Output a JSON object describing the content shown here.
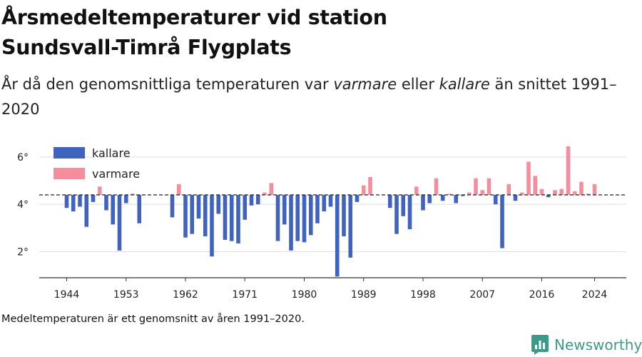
{
  "title_line1": "Årsmedeltemperaturer vid station",
  "title_line2": "Sundsvall-Timrå Flygplats",
  "subtitle": {
    "part1": "År då den genomsnittliga temperaturen var ",
    "warmer": "varmare",
    "part2": " eller ",
    "colder": "kallare",
    "part3": " än snittet 1991–2020"
  },
  "note": "Medeltemperaturen är ett genomsnitt av åren 1991–2020.",
  "brand": "Newsworthy",
  "colors": {
    "colder": "#3f63bf",
    "warmer": "#f58d9c",
    "grid": "#dddddd",
    "axis": "#333333",
    "reference": "#333333"
  },
  "chart_data": {
    "type": "bar",
    "baseline": 4.4,
    "ylim": [
      0.9,
      6.9
    ],
    "yticks": [
      2,
      4,
      6
    ],
    "ytick_labels": [
      "2°",
      "4°",
      "6°"
    ],
    "xlim": [
      1939.5,
      2028.5
    ],
    "xticks": [
      1944,
      1953,
      1962,
      1971,
      1980,
      1989,
      1998,
      2007,
      2016,
      2024
    ],
    "xtick_labels": [
      "1944",
      "1953",
      "1962",
      "1971",
      "1980",
      "1989",
      "1998",
      "2007",
      "2016",
      "2024"
    ],
    "grid": true,
    "legend": {
      "position": "top-left",
      "items": [
        {
          "key": "colder",
          "label": "kallare"
        },
        {
          "key": "warmer",
          "label": "varmare"
        }
      ]
    },
    "years": [
      1944,
      1945,
      1946,
      1947,
      1948,
      1949,
      1950,
      1951,
      1952,
      1953,
      1954,
      1955,
      1960,
      1961,
      1962,
      1963,
      1964,
      1965,
      1966,
      1967,
      1968,
      1969,
      1970,
      1971,
      1972,
      1973,
      1974,
      1975,
      1976,
      1977,
      1978,
      1979,
      1980,
      1981,
      1982,
      1983,
      1984,
      1985,
      1986,
      1987,
      1988,
      1989,
      1990,
      1993,
      1994,
      1995,
      1996,
      1997,
      1998,
      1999,
      2000,
      2001,
      2002,
      2003,
      2004,
      2005,
      2006,
      2007,
      2008,
      2009,
      2010,
      2011,
      2012,
      2013,
      2014,
      2015,
      2016,
      2017,
      2018,
      2019,
      2020,
      2021,
      2022,
      2023,
      2024
    ],
    "values": [
      3.85,
      3.7,
      3.9,
      3.05,
      4.1,
      4.75,
      3.75,
      3.15,
      2.05,
      4.05,
      4.45,
      3.2,
      3.45,
      4.85,
      2.6,
      2.75,
      3.4,
      2.65,
      1.8,
      3.6,
      2.5,
      2.45,
      2.35,
      3.35,
      3.95,
      4.0,
      4.5,
      4.9,
      2.45,
      3.15,
      2.05,
      2.45,
      2.4,
      2.7,
      3.2,
      3.7,
      3.9,
      0.95,
      2.65,
      1.75,
      4.1,
      4.8,
      5.15,
      3.85,
      2.75,
      3.5,
      2.95,
      4.75,
      3.75,
      4.05,
      5.1,
      4.15,
      4.45,
      4.05,
      4.35,
      4.5,
      5.1,
      4.6,
      5.1,
      4.0,
      2.15,
      4.85,
      4.15,
      4.5,
      5.8,
      5.2,
      4.65,
      4.3,
      4.6,
      4.65,
      6.45,
      4.55,
      4.95,
      4.45,
      4.85
    ]
  }
}
